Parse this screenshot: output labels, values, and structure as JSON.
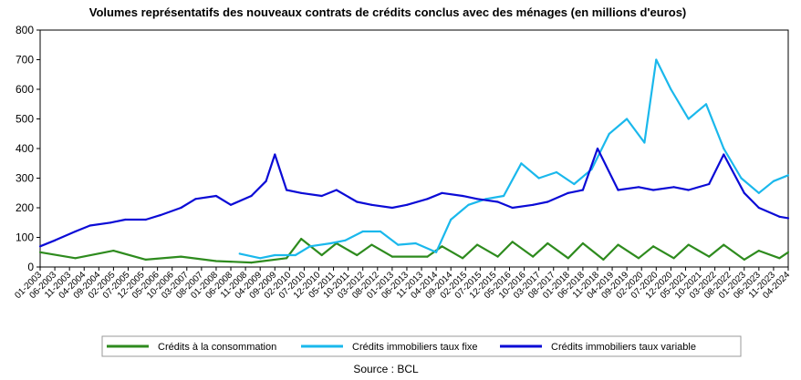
{
  "chart_data": {
    "type": "line",
    "title": "Volumes représentatifs des nouveaux contrats de crédits conclus avec des ménages (en millions d'euros)",
    "source": "Source : BCL",
    "ylim": [
      0,
      800
    ],
    "yticks": [
      0,
      100,
      200,
      300,
      400,
      500,
      600,
      700,
      800
    ],
    "grid": false,
    "legend_position": "bottom",
    "xlim": [
      "01-2003",
      "04-2024"
    ],
    "xtick_labels": [
      "01-2003",
      "06-2003",
      "11-2003",
      "04-2004",
      "09-2004",
      "02-2005",
      "07-2005",
      "12-2005",
      "05-2006",
      "10-2006",
      "03-2007",
      "08-2007",
      "01-2008",
      "06-2008",
      "11-2008",
      "04-2009",
      "09-2009",
      "02-2010",
      "07-2010",
      "12-2010",
      "05-2011",
      "10-2011",
      "03-2012",
      "08-2012",
      "01-2013",
      "06-2013",
      "11-2013",
      "04-2014",
      "09-2014",
      "02-2015",
      "07-2015",
      "12-2015",
      "05-2016",
      "10-2016",
      "03-2017",
      "08-2017",
      "01-2018",
      "06-2018",
      "11-2018",
      "04-2019",
      "09-2019",
      "02-2020",
      "07-2020",
      "12-2020",
      "05-2021",
      "10-2021",
      "03-2022",
      "08-2022",
      "01-2023",
      "06-2023",
      "11-2023",
      "04-2024"
    ],
    "series": [
      {
        "name": "Crédits à la consommation",
        "color": "#2e8b1e",
        "points": [
          [
            "01-2003",
            50
          ],
          [
            "01-2004",
            30
          ],
          [
            "02-2005",
            55
          ],
          [
            "01-2006",
            25
          ],
          [
            "01-2007",
            35
          ],
          [
            "01-2008",
            20
          ],
          [
            "01-2009",
            15
          ],
          [
            "01-2010",
            30
          ],
          [
            "06-2010",
            95
          ],
          [
            "01-2011",
            40
          ],
          [
            "06-2011",
            80
          ],
          [
            "01-2012",
            40
          ],
          [
            "06-2012",
            75
          ],
          [
            "01-2013",
            35
          ],
          [
            "01-2014",
            35
          ],
          [
            "06-2014",
            70
          ],
          [
            "01-2015",
            30
          ],
          [
            "06-2015",
            75
          ],
          [
            "01-2016",
            35
          ],
          [
            "06-2016",
            85
          ],
          [
            "01-2017",
            35
          ],
          [
            "06-2017",
            80
          ],
          [
            "01-2018",
            30
          ],
          [
            "06-2018",
            80
          ],
          [
            "01-2019",
            25
          ],
          [
            "06-2019",
            75
          ],
          [
            "01-2020",
            30
          ],
          [
            "06-2020",
            70
          ],
          [
            "01-2021",
            30
          ],
          [
            "06-2021",
            75
          ],
          [
            "01-2022",
            35
          ],
          [
            "06-2022",
            75
          ],
          [
            "01-2023",
            25
          ],
          [
            "06-2023",
            55
          ],
          [
            "01-2024",
            30
          ],
          [
            "04-2024",
            50
          ]
        ]
      },
      {
        "name": "Crédits immobiliers taux fixe",
        "color": "#1ab8ec",
        "points": [
          [
            "09-2008",
            45
          ],
          [
            "04-2009",
            30
          ],
          [
            "09-2009",
            40
          ],
          [
            "04-2010",
            40
          ],
          [
            "09-2010",
            70
          ],
          [
            "04-2011",
            80
          ],
          [
            "09-2011",
            90
          ],
          [
            "03-2012",
            120
          ],
          [
            "09-2012",
            120
          ],
          [
            "03-2013",
            75
          ],
          [
            "09-2013",
            80
          ],
          [
            "04-2014",
            50
          ],
          [
            "09-2014",
            160
          ],
          [
            "03-2015",
            210
          ],
          [
            "09-2015",
            230
          ],
          [
            "03-2016",
            240
          ],
          [
            "09-2016",
            350
          ],
          [
            "03-2017",
            300
          ],
          [
            "09-2017",
            320
          ],
          [
            "03-2018",
            280
          ],
          [
            "09-2018",
            330
          ],
          [
            "03-2019",
            450
          ],
          [
            "09-2019",
            500
          ],
          [
            "03-2020",
            420
          ],
          [
            "07-2020",
            700
          ],
          [
            "12-2020",
            600
          ],
          [
            "06-2021",
            500
          ],
          [
            "12-2021",
            550
          ],
          [
            "06-2022",
            400
          ],
          [
            "12-2022",
            300
          ],
          [
            "06-2023",
            250
          ],
          [
            "11-2023",
            290
          ],
          [
            "04-2024",
            310
          ]
        ]
      },
      {
        "name": "Crédits immobiliers taux variable",
        "color": "#0b0bd6",
        "points": [
          [
            "01-2003",
            70
          ],
          [
            "06-2003",
            90
          ],
          [
            "01-2004",
            120
          ],
          [
            "06-2004",
            140
          ],
          [
            "01-2005",
            150
          ],
          [
            "06-2005",
            160
          ],
          [
            "01-2006",
            160
          ],
          [
            "06-2006",
            175
          ],
          [
            "01-2007",
            200
          ],
          [
            "06-2007",
            230
          ],
          [
            "01-2008",
            240
          ],
          [
            "06-2008",
            210
          ],
          [
            "01-2009",
            240
          ],
          [
            "06-2009",
            290
          ],
          [
            "09-2009",
            380
          ],
          [
            "01-2010",
            260
          ],
          [
            "06-2010",
            250
          ],
          [
            "01-2011",
            240
          ],
          [
            "06-2011",
            260
          ],
          [
            "01-2012",
            220
          ],
          [
            "06-2012",
            210
          ],
          [
            "01-2013",
            200
          ],
          [
            "06-2013",
            210
          ],
          [
            "01-2014",
            230
          ],
          [
            "06-2014",
            250
          ],
          [
            "01-2015",
            240
          ],
          [
            "06-2015",
            230
          ],
          [
            "01-2016",
            220
          ],
          [
            "06-2016",
            200
          ],
          [
            "01-2017",
            210
          ],
          [
            "06-2017",
            220
          ],
          [
            "01-2018",
            250
          ],
          [
            "06-2018",
            260
          ],
          [
            "11-2018",
            400
          ],
          [
            "06-2019",
            260
          ],
          [
            "01-2020",
            270
          ],
          [
            "06-2020",
            260
          ],
          [
            "01-2021",
            270
          ],
          [
            "06-2021",
            260
          ],
          [
            "01-2022",
            280
          ],
          [
            "06-2022",
            380
          ],
          [
            "01-2023",
            250
          ],
          [
            "06-2023",
            200
          ],
          [
            "01-2024",
            170
          ],
          [
            "04-2024",
            165
          ]
        ]
      }
    ]
  }
}
